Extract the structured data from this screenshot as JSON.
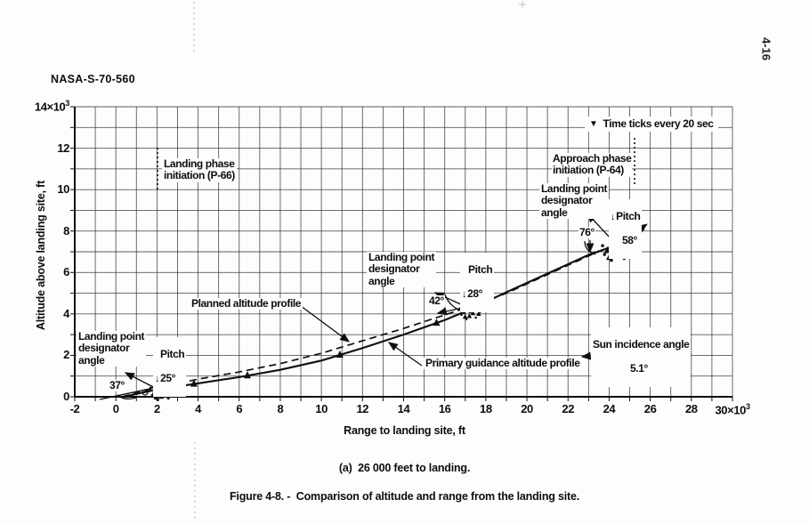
{
  "page": {
    "report_id": "NASA-S-70-560",
    "page_number": "4-16",
    "caption_a": "(a)  26 000 feet to landing.",
    "caption_figure": "Figure 4-8. -  Comparison of altitude and range from the landing site."
  },
  "chart_data": {
    "type": "line",
    "title": "",
    "xlabel": "Range to landing site, ft",
    "ylabel": "Altitude above landing site, ft",
    "xlim": [
      -2,
      30
    ],
    "ylim": [
      0,
      14
    ],
    "x_scale_note": "×10³ ft",
    "y_scale_note": "×10³ ft",
    "grid": "on, 1000 ft squares both axes",
    "legend_position": "top-right inside plot",
    "x_ticks": [
      -2,
      0,
      2,
      4,
      6,
      8,
      10,
      12,
      14,
      16,
      18,
      20,
      22,
      24,
      26,
      28,
      30
    ],
    "x_tick_labels": [
      "-2",
      "0",
      "2",
      "4",
      "6",
      "8",
      "10",
      "12",
      "14",
      "16",
      "18",
      "20",
      "22",
      "24",
      "26",
      "28",
      "30×10³"
    ],
    "y_ticks": [
      0,
      2,
      4,
      6,
      8,
      10,
      12,
      14
    ],
    "y_tick_labels": [
      "0",
      "2",
      "4",
      "6",
      "8",
      "10",
      "12",
      "14×10³"
    ],
    "series": [
      {
        "name": "Primary guidance altitude profile",
        "style": "solid",
        "x": [
          0.6,
          2.0,
          3.0,
          4.0,
          6.0,
          8.0,
          10.0,
          12.0,
          14.0,
          16.0,
          17.2,
          19.0,
          21.0,
          23.0,
          24.3,
          25.8
        ],
        "y": [
          0.05,
          0.35,
          0.5,
          0.65,
          0.95,
          1.3,
          1.75,
          2.35,
          3.0,
          3.7,
          4.2,
          5.05,
          5.95,
          6.85,
          7.3,
          8.3
        ]
      },
      {
        "name": "Planned altitude profile",
        "style": "dashed",
        "x": [
          0.3,
          2.0,
          3.0,
          4.0,
          6.0,
          8.0,
          10.0,
          12.0,
          14.0,
          16.0,
          17.2,
          19.0,
          21.0,
          23.0,
          24.3,
          25.9
        ],
        "y": [
          0.0,
          0.45,
          0.65,
          0.85,
          1.2,
          1.6,
          2.1,
          2.7,
          3.3,
          3.95,
          4.35,
          5.0,
          5.9,
          6.8,
          7.35,
          8.2
        ]
      }
    ],
    "time_tick_marks": {
      "label": "Time ticks every 20 sec",
      "x_positions": [
        3.8,
        6.4,
        10.9,
        15.6
      ]
    },
    "data_point_clusters": [
      {
        "range": 2.2,
        "altitude": 0.35,
        "scale": 0.9,
        "note": "landing phase initiation region"
      },
      {
        "range": 17.2,
        "altitude": 4.2,
        "scale": 0.8
      },
      {
        "range": 24.3,
        "altitude": 7.2,
        "scale": 1.1,
        "note": "approach phase initiation region"
      }
    ],
    "annotations": {
      "legend": {
        "icon": "▼",
        "text": "Time ticks every 20 sec"
      },
      "landing_phase": {
        "text": "Landing phase\ninitiation (P-66)",
        "lines": [
          [
            177,
            166,
            177,
            214,
            "dotted"
          ]
        ]
      },
      "approach_phase": {
        "text": "Approach phase\ninitiation (P-64)",
        "lines": [
          [
            713,
            155,
            713,
            207,
            "dotted"
          ]
        ]
      },
      "lpd_right": {
        "text": "Landing point\ndesignator\nangle",
        "lines": [
          [
            687,
            269,
            660,
            240,
            "arrow"
          ]
        ]
      },
      "pitch_right": {
        "icon": "↓",
        "label": "Pitch",
        "value": "58°",
        "lines": [
          [
            693,
            240,
            693,
            268,
            ""
          ]
        ],
        "arcs": [
          [
            699,
            246,
            713,
            248,
            721,
            259
          ]
        ]
      },
      "deg76": {
        "text": "76°",
        "lines": [
          [
            663,
            270,
            663,
            283,
            "arrow"
          ]
        ],
        "arcs": [
          [
            657,
            271,
            657,
            282,
            669,
            286
          ]
        ]
      },
      "lpd_mid": {
        "text": "Landing point\ndesignator\nangle",
        "lines": [
          [
            522,
            344,
            489,
            329,
            "arrow"
          ]
        ]
      },
      "pitch_mid": {
        "icon": "↓",
        "label": "Pitch",
        "value": "28°",
        "lines": [
          [
            530,
            312,
            530,
            343,
            ""
          ],
          [
            532,
            343,
            548,
            309,
            "arrow"
          ]
        ],
        "arcs": [
          [
            531,
            321,
            538,
            320,
            544,
            315
          ]
        ]
      },
      "deg42": {
        "text": "42°",
        "lines": [
          [
            520,
            346,
            492,
            352,
            "arrow"
          ]
        ],
        "arcs": [
          [
            500,
            331,
            504,
            343,
            517,
            349
          ]
        ]
      },
      "planned": {
        "text": "Planned altitude profile",
        "lines": [
          [
            338,
            344,
            392,
            384,
            "arrow"
          ]
        ]
      },
      "primary": {
        "text": "Primary guidance altitude profile",
        "lines": [
          [
            474,
            411,
            437,
            385,
            "arrow"
          ]
        ]
      },
      "sun": {
        "text": "Sun incidence angle",
        "value": "5.1°",
        "lines": [
          [
            750,
            392,
            654,
            401,
            "arrow"
          ]
        ]
      },
      "lpd_left": {
        "text": "Landing point\ndesignator\nangle",
        "lines": [
          [
            187,
            433,
            112,
            449,
            ""
          ]
        ]
      },
      "pitch_left": {
        "icon": "↓",
        "label": "Pitch",
        "value": "25°",
        "lines": [
          [
            183,
            405,
            183,
            431,
            ""
          ],
          [
            180,
            432,
            199,
            407,
            "arrow"
          ]
        ],
        "arcs": [
          [
            184,
            416,
            192,
            416,
            199,
            410
          ]
        ]
      },
      "deg37": {
        "text": "37°",
        "lines": [
          [
            176,
            437,
            141,
            419,
            "arrow"
          ]
        ],
        "arcs": [
          [
            132,
            444,
            140,
            451,
            153,
            447
          ]
        ],
        "circles": [
          [
            163,
            441,
            3
          ]
        ]
      }
    }
  }
}
